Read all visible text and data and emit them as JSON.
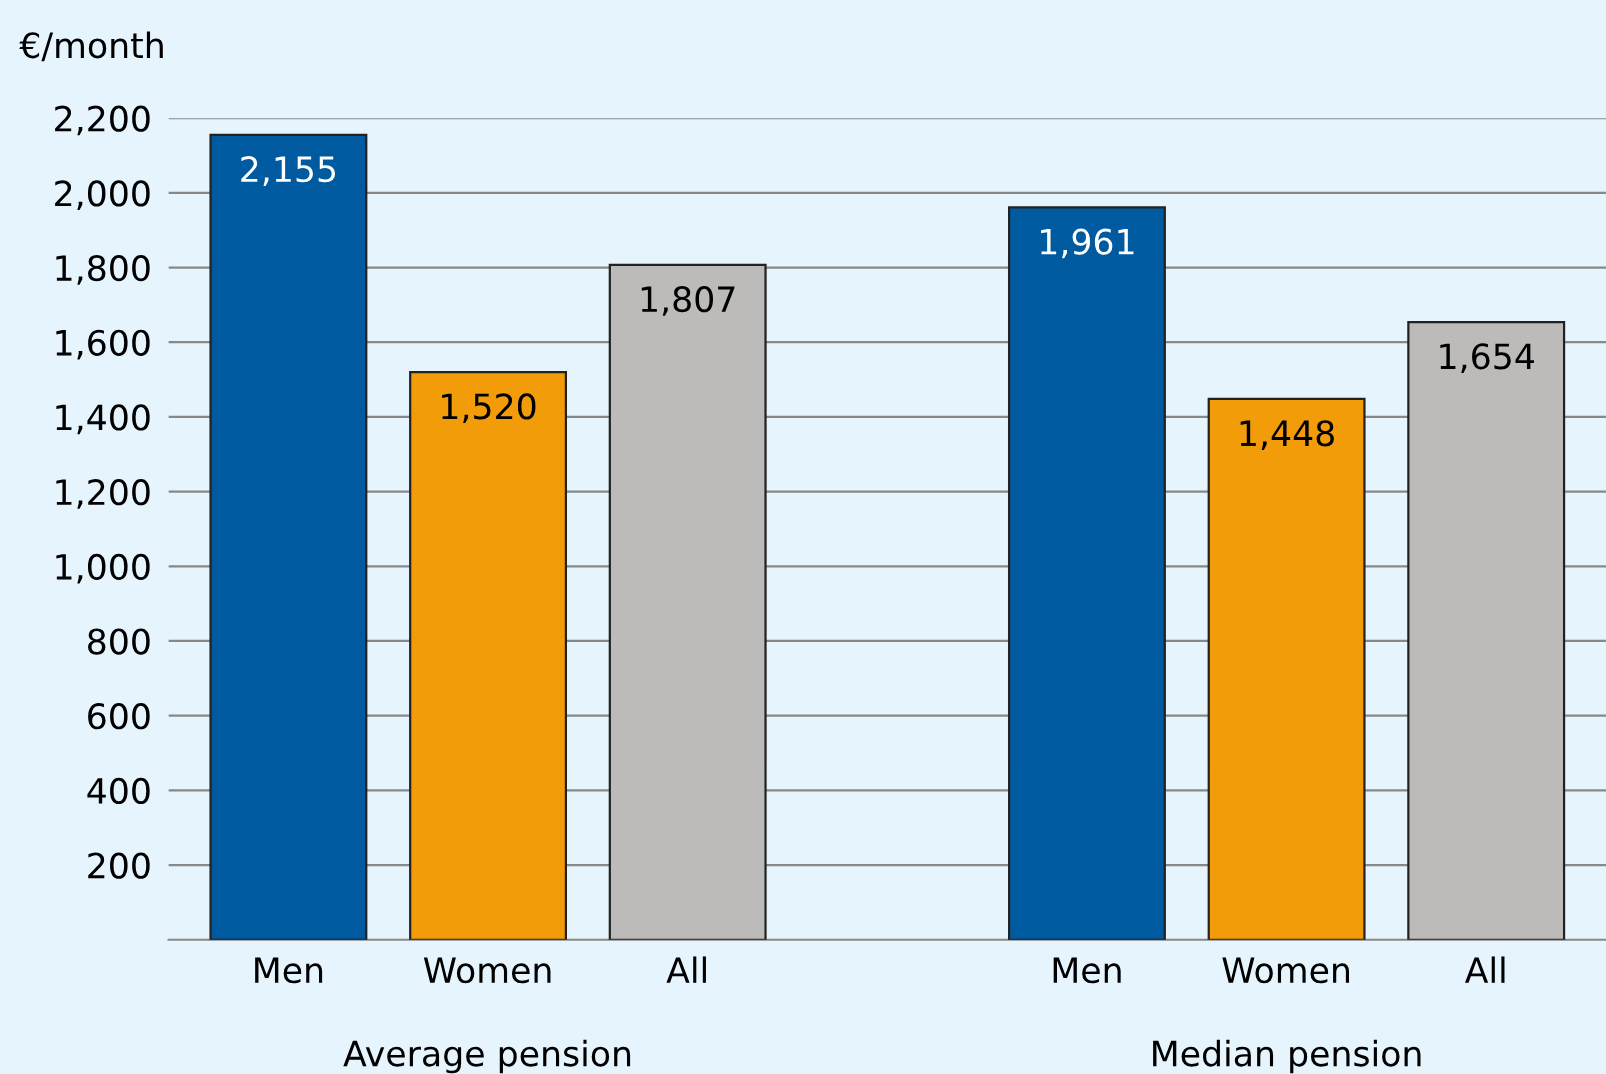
{
  "chart_data": {
    "type": "bar",
    "ylabel": "€/month",
    "categories": [
      "Men",
      "Women",
      "All",
      null,
      "Men",
      "Women",
      "All"
    ],
    "values": [
      2155,
      1520,
      1807,
      null,
      1961,
      1448,
      1654
    ],
    "colors": [
      "#005aa0",
      "#f39c0a",
      "#bcbbb9",
      null,
      "#005aa0",
      "#f39c0a",
      "#bcbbb9"
    ],
    "data_labels": true,
    "value_labels": [
      "2,155",
      "1,520",
      "1,807",
      null,
      "1,961",
      "1,448",
      "1,654"
    ],
    "ylim": [
      0,
      2200
    ],
    "yticks": [
      {
        "value": 200,
        "label": "200"
      },
      {
        "value": 400,
        "label": "400"
      },
      {
        "value": 600,
        "label": "600"
      },
      {
        "value": 800,
        "label": "800"
      },
      {
        "value": 1000,
        "label": "1,000"
      },
      {
        "value": 1200,
        "label": "1,200"
      },
      {
        "value": 1400,
        "label": "1,400"
      },
      {
        "value": 1600,
        "label": "1,600"
      },
      {
        "value": 1800,
        "label": "1,800"
      },
      {
        "value": 2000,
        "label": "2,000"
      },
      {
        "value": 2200,
        "label": "2,200"
      }
    ],
    "grid": "y",
    "annotations": [
      "Average pension",
      "Median pension"
    ]
  }
}
